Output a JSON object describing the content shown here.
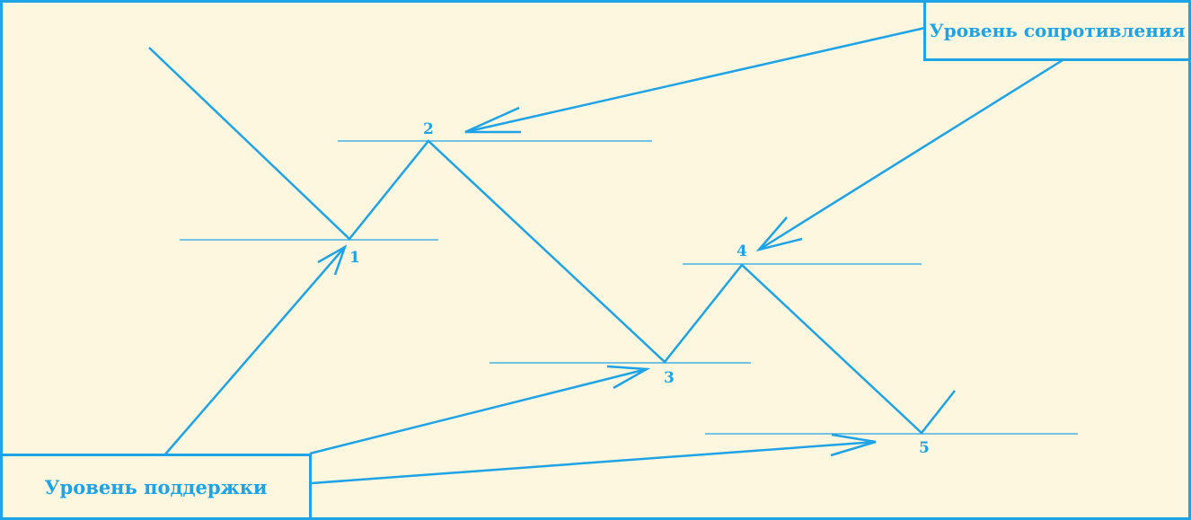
{
  "labels": {
    "resistance": "Уровень сопротивления",
    "support": "Уровень поддержки"
  },
  "points": [
    "1",
    "2",
    "3",
    "4",
    "5"
  ],
  "colors": {
    "line": "#1ea3e6",
    "background": "#fdf7df"
  }
}
